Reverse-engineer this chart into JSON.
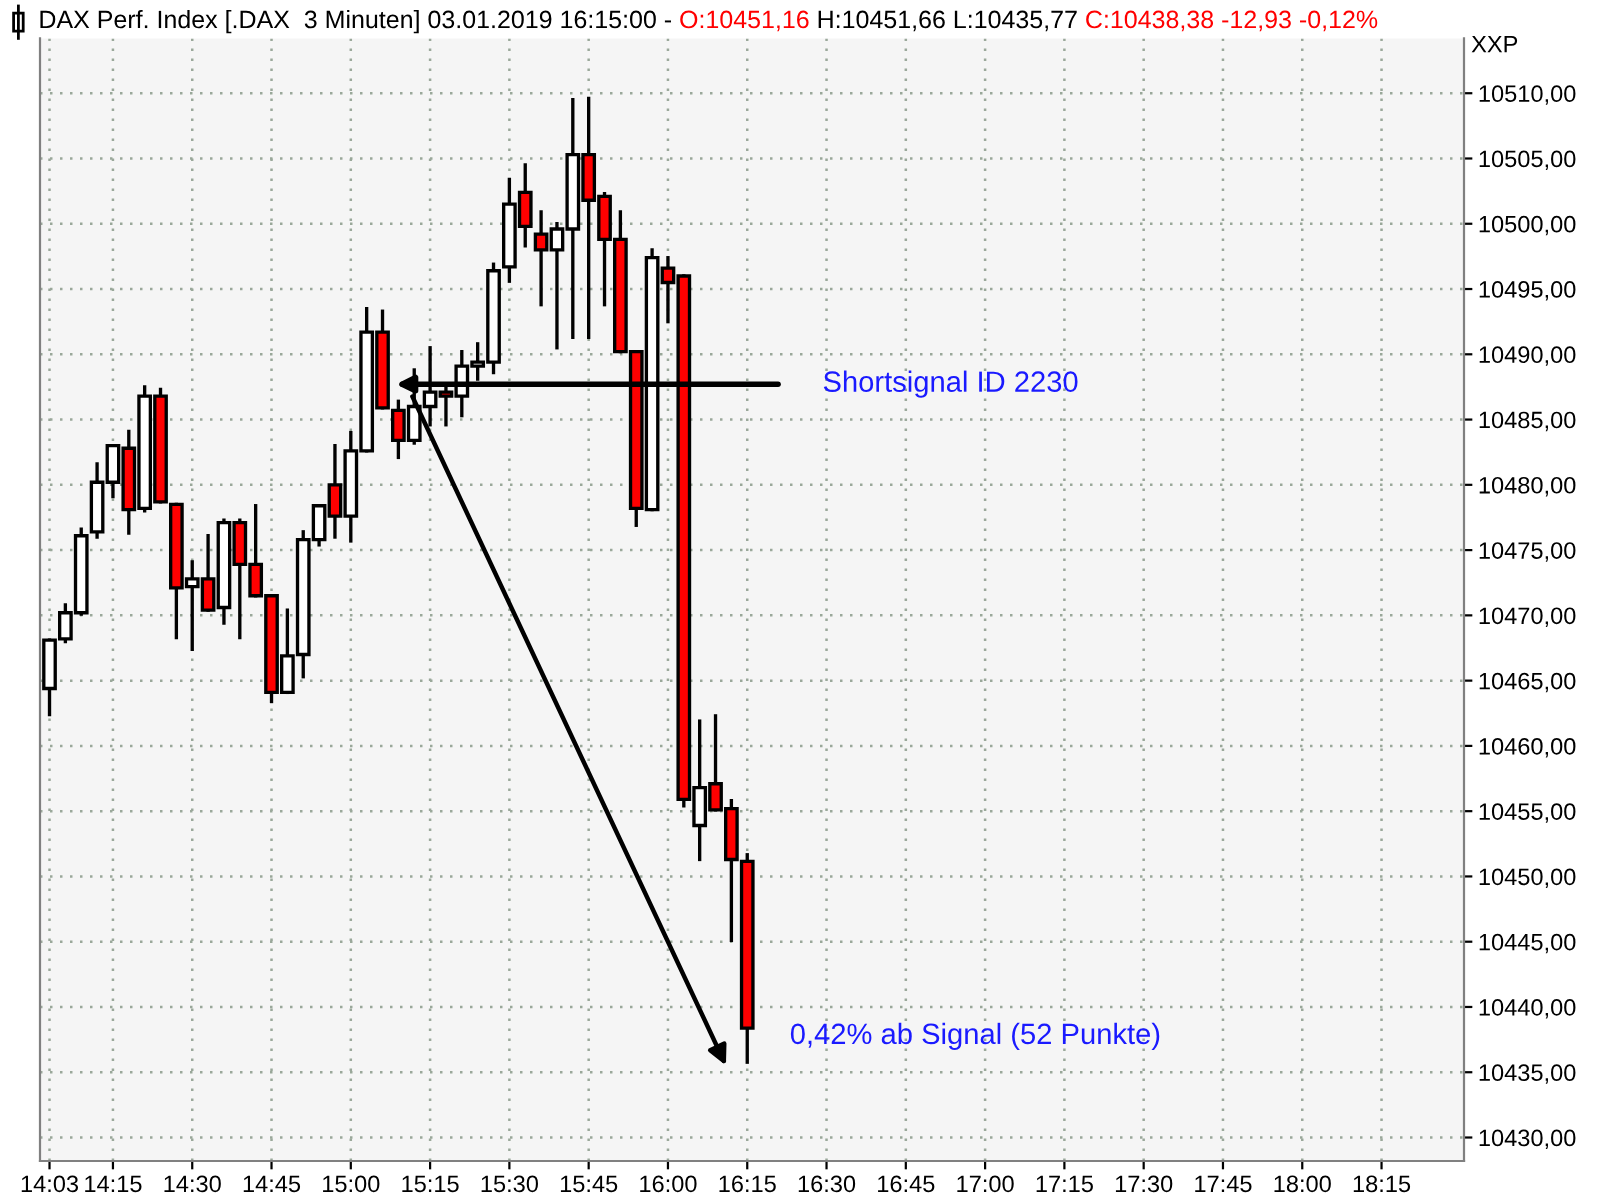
{
  "chart_data": {
    "type": "candlestick",
    "title": "DAX Perf. Index [.DAX  3 Minuten] 03.01.2019 16:15:00 -",
    "subtitle": "O:10451,16 H:10451,66 L:10435,77 C:10438,38 -12,93 -0,12%",
    "ylabel": "XXP",
    "x": [
      14.05,
      14.1,
      14.15,
      14.2,
      14.25,
      14.3,
      14.35,
      14.4,
      14.45,
      14.5,
      14.55,
      14.6,
      14.65,
      14.7,
      14.75,
      14.8,
      14.85,
      14.9,
      14.95,
      15.0,
      15.05,
      15.1,
      15.15,
      15.2,
      15.25,
      15.3,
      15.35,
      15.4,
      15.45,
      15.5,
      15.55,
      15.6,
      15.65,
      15.7,
      15.75,
      15.8,
      15.85,
      15.9,
      15.95,
      16.0,
      16.05,
      16.1,
      16.15,
      16.2,
      16.25
    ],
    "ohlc": [
      [
        10464.4,
        10468.1,
        10462.4,
        10468.1
      ],
      [
        10468.2,
        10470.8,
        10468.0,
        10470.2
      ],
      [
        10470.2,
        10476.6,
        10470.1,
        10476.1
      ],
      [
        10476.4,
        10481.6,
        10476.0,
        10480.2
      ],
      [
        10480.2,
        10483.0,
        10479.1,
        10483.0
      ],
      [
        10482.8,
        10484.1,
        10476.3,
        10478.1
      ],
      [
        10478.2,
        10487.5,
        10478.0,
        10486.8
      ],
      [
        10486.8,
        10487.3,
        10478.7,
        10478.7
      ],
      [
        10478.5,
        10478.5,
        10468.3,
        10472.1
      ],
      [
        10472.2,
        10474.1,
        10467.4,
        10472.8
      ],
      [
        10472.8,
        10476.1,
        10470.4,
        10470.4
      ],
      [
        10470.6,
        10477.3,
        10469.4,
        10477.1
      ],
      [
        10477.1,
        10477.3,
        10468.3,
        10473.9
      ],
      [
        10473.9,
        10478.4,
        10471.5,
        10471.5
      ],
      [
        10471.5,
        10471.5,
        10463.4,
        10464.1
      ],
      [
        10464.1,
        10470.4,
        10464.1,
        10466.9
      ],
      [
        10467.0,
        10476.4,
        10465.3,
        10475.8
      ],
      [
        10475.8,
        10478.4,
        10475.4,
        10478.4
      ],
      [
        10480.0,
        10483.0,
        10476.0,
        10477.6
      ],
      [
        10477.6,
        10484.0,
        10475.7,
        10482.6
      ],
      [
        10482.6,
        10493.5,
        10482.6,
        10491.7
      ],
      [
        10491.7,
        10493.3,
        10485.9,
        10485.9
      ],
      [
        10485.7,
        10486.4,
        10482.1,
        10483.4
      ],
      [
        10483.4,
        10488.8,
        10483.2,
        10486.0
      ],
      [
        10486.0,
        10490.5,
        10484.6,
        10487.1
      ],
      [
        10487.1,
        10487.5,
        10484.6,
        10486.8
      ],
      [
        10486.8,
        10490.2,
        10485.3,
        10489.1
      ],
      [
        10489.1,
        10490.8,
        10488.1,
        10489.4
      ],
      [
        10489.4,
        10496.9,
        10488.6,
        10496.4
      ],
      [
        10496.7,
        10503.4,
        10495.6,
        10501.5
      ],
      [
        10502.4,
        10504.5,
        10498.3,
        10499.8
      ],
      [
        10499.2,
        10500.9,
        10493.8,
        10498.0
      ],
      [
        10498.0,
        10500.0,
        10490.5,
        10499.6
      ],
      [
        10499.6,
        10509.5,
        10491.3,
        10505.3
      ],
      [
        10505.3,
        10509.6,
        10491.3,
        10501.8
      ],
      [
        10502.1,
        10502.3,
        10493.8,
        10498.8
      ],
      [
        10498.8,
        10500.9,
        10490.2,
        10490.2
      ],
      [
        10490.2,
        10490.2,
        10476.9,
        10478.2
      ],
      [
        10478.1,
        10498.0,
        10478.1,
        10497.4
      ],
      [
        10496.6,
        10497.4,
        10492.5,
        10495.5
      ],
      [
        10496.0,
        10496.0,
        10455.4,
        10455.9
      ],
      [
        10453.9,
        10461.9,
        10451.3,
        10456.8
      ],
      [
        10457.1,
        10462.3,
        10455.1,
        10455.1
      ],
      [
        10455.2,
        10455.8,
        10445.1,
        10451.3
      ],
      [
        10451.16,
        10451.66,
        10435.77,
        10438.38
      ]
    ],
    "colors": [
      "#ffffff",
      "#ffffff",
      "#ffffff",
      "#ffffff",
      "#ffffff",
      "#ff0000",
      "#ffffff",
      "#ff0000",
      "#ff0000",
      "#ffffff",
      "#ff0000",
      "#ffffff",
      "#ff0000",
      "#ff0000",
      "#ff0000",
      "#ffffff",
      "#ffffff",
      "#ffffff",
      "#ff0000",
      "#ffffff",
      "#ffffff",
      "#ff0000",
      "#ff0000",
      "#ffffff",
      "#ffffff",
      "#ff0000",
      "#ffffff",
      "#ffffff",
      "#ffffff",
      "#ffffff",
      "#ff0000",
      "#ff0000",
      "#ffffff",
      "#ffffff",
      "#ff0000",
      "#ff0000",
      "#ff0000",
      "#ff0000",
      "#ffffff",
      "#ff0000",
      "#ff0000",
      "#ffffff",
      "#ff0000",
      "#ff0000",
      "#ff0000"
    ],
    "xlim": [
      14.02,
      18.51
    ],
    "xticks": [
      {
        "value": 14.05,
        "label": "14:03"
      },
      {
        "value": 14.25,
        "label": "14:15"
      },
      {
        "value": 14.5,
        "label": "14:30"
      },
      {
        "value": 14.75,
        "label": "14:45"
      },
      {
        "value": 15,
        "label": "15:00"
      },
      {
        "value": 15.25,
        "label": "15:15"
      },
      {
        "value": 15.5,
        "label": "15:30"
      },
      {
        "value": 15.75,
        "label": "15:45"
      },
      {
        "value": 16,
        "label": "16:00"
      },
      {
        "value": 16.25,
        "label": "16:15"
      },
      {
        "value": 16.5,
        "label": "16:30"
      },
      {
        "value": 16.75,
        "label": "16:45"
      },
      {
        "value": 17,
        "label": "17:00"
      },
      {
        "value": 17.25,
        "label": "17:15"
      },
      {
        "value": 17.5,
        "label": "17:30"
      },
      {
        "value": 17.75,
        "label": "17:45"
      },
      {
        "value": 18,
        "label": "18:00"
      },
      {
        "value": 18.25,
        "label": "18:15"
      }
    ],
    "ylim": [
      10428.2,
      10514.2
    ],
    "yticks": [
      {
        "value": 10430,
        "label": "10430,00"
      },
      {
        "value": 10435,
        "label": "10435,00"
      },
      {
        "value": 10440,
        "label": "10440,00"
      },
      {
        "value": 10445,
        "label": "10445,00"
      },
      {
        "value": 10450,
        "label": "10450,00"
      },
      {
        "value": 10455,
        "label": "10455,00"
      },
      {
        "value": 10460,
        "label": "10460,00"
      },
      {
        "value": 10465,
        "label": "10465,00"
      },
      {
        "value": 10470,
        "label": "10470,00"
      },
      {
        "value": 10475,
        "label": "10475,00"
      },
      {
        "value": 10480,
        "label": "10480,00"
      },
      {
        "value": 10485,
        "label": "10485,00"
      },
      {
        "value": 10490,
        "label": "10490,00"
      },
      {
        "value": 10495,
        "label": "10495,00"
      },
      {
        "value": 10500,
        "label": "10500,00"
      },
      {
        "value": 10505,
        "label": "10505,00"
      },
      {
        "value": 10510,
        "label": "10510,00"
      }
    ],
    "grid": true,
    "annotations": [
      "Shortsignal ID 2230",
      "0,42% ab Signal (52 Punkte)"
    ]
  }
}
